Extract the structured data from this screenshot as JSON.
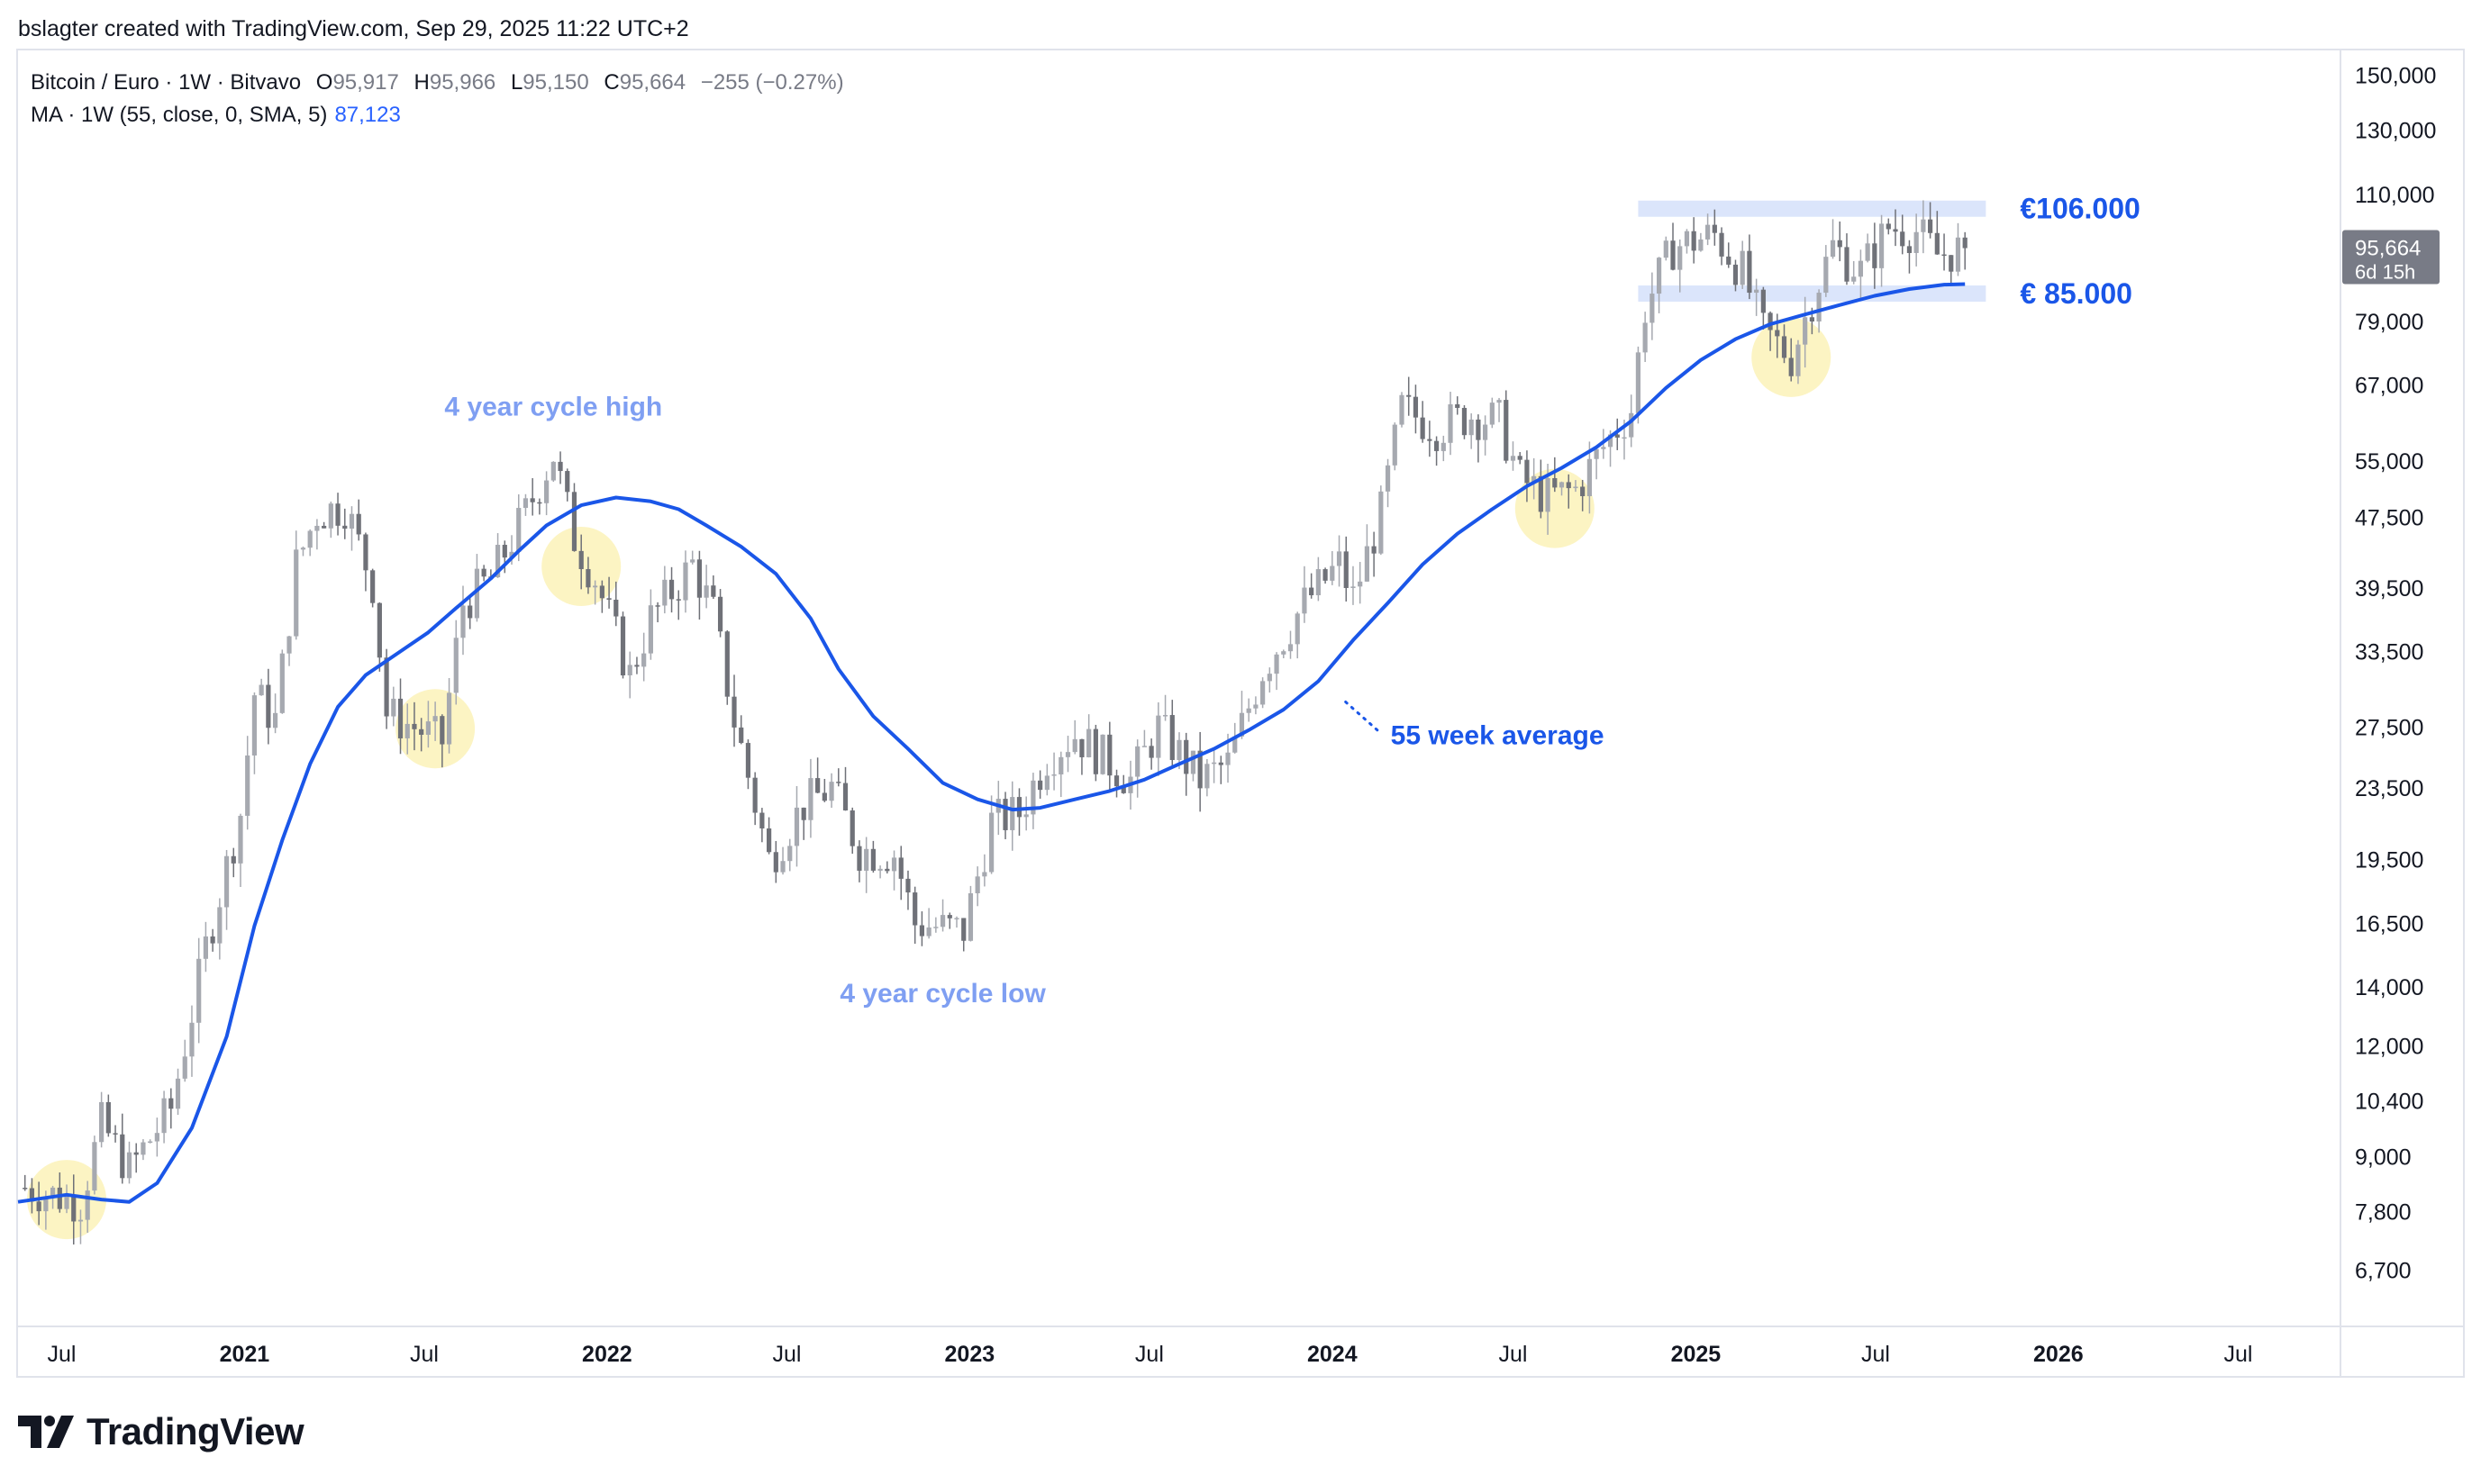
{
  "header": {
    "attribution": "bslagter created with TradingView.com, Sep 29, 2025 11:22 UTC+2"
  },
  "legend": {
    "symbol": "Bitcoin / Euro · 1W · Bitvavo",
    "open_label": "O",
    "open": "95,917",
    "high_label": "H",
    "high": "95,966",
    "low_label": "L",
    "low": "95,150",
    "close_label": "C",
    "close": "95,664",
    "change": "−255 (−0.27%)",
    "ma_label": "MA · 1W (55, close, 0, SMA, 5)",
    "ma_value": "87,123"
  },
  "price_tag": {
    "price": "95,664",
    "countdown": "6d 15h"
  },
  "brand": {
    "name": "TradingView"
  },
  "colors": {
    "ma_line": "#1a56e8",
    "candles": "#a6a9b0",
    "candles_dark": "#6f7178",
    "highlight": "#fbf2b8",
    "band": "#dbe5fb",
    "annotation_light": "#7f9ff2",
    "annotation_dark": "#1a56e8",
    "price_tag_bg": "#787b86"
  },
  "chart_data": {
    "type": "candlestick",
    "title": "Bitcoin / Euro · 1W · Bitvavo",
    "scale": "log",
    "ylim": [
      5800,
      160000
    ],
    "x_range": [
      "2020-05-18",
      "2026-10-12"
    ],
    "y_ticks": [
      "150,000",
      "130,000",
      "110,000",
      "95,664",
      "79,000",
      "67,000",
      "55,000",
      "47,500",
      "39,500",
      "33,500",
      "27,500",
      "23,500",
      "19,500",
      "16,500",
      "14,000",
      "12,000",
      "10,400",
      "9,000",
      "7,800",
      "6,700"
    ],
    "x_ticks": [
      {
        "label": "Jul",
        "date": "2020-07-01",
        "bold": false
      },
      {
        "label": "2021",
        "date": "2021-01-01",
        "bold": true
      },
      {
        "label": "Jul",
        "date": "2021-07-01",
        "bold": false
      },
      {
        "label": "2022",
        "date": "2022-01-01",
        "bold": true
      },
      {
        "label": "Jul",
        "date": "2022-07-01",
        "bold": false
      },
      {
        "label": "2023",
        "date": "2023-01-01",
        "bold": true
      },
      {
        "label": "Jul",
        "date": "2023-07-01",
        "bold": false
      },
      {
        "label": "2024",
        "date": "2024-01-01",
        "bold": true
      },
      {
        "label": "Jul",
        "date": "2024-07-01",
        "bold": false
      },
      {
        "label": "2025",
        "date": "2025-01-01",
        "bold": true
      },
      {
        "label": "Jul",
        "date": "2025-07-01",
        "bold": false
      },
      {
        "label": "2026",
        "date": "2026-01-01",
        "bold": true
      },
      {
        "label": "Jul",
        "date": "2026-07-01",
        "bold": false
      }
    ],
    "price_path": [
      [
        "2020-05-25",
        8300
      ],
      [
        "2020-07-20",
        8000
      ],
      [
        "2020-08-10",
        9800
      ],
      [
        "2020-09-07",
        8700
      ],
      [
        "2020-10-19",
        10200
      ],
      [
        "2020-11-23",
        15500
      ],
      [
        "2020-12-28",
        22000
      ],
      [
        "2021-01-11",
        30000
      ],
      [
        "2021-02-01",
        28000
      ],
      [
        "2021-02-22",
        42000
      ],
      [
        "2021-03-15",
        48000
      ],
      [
        "2021-04-12",
        49000
      ],
      [
        "2021-05-10",
        40000
      ],
      [
        "2021-05-24",
        28500
      ],
      [
        "2021-06-21",
        27500
      ],
      [
        "2021-07-19",
        26500
      ],
      [
        "2021-08-09",
        38000
      ],
      [
        "2021-09-06",
        40500
      ],
      [
        "2021-10-11",
        48000
      ],
      [
        "2021-11-08",
        56000
      ],
      [
        "2021-11-29",
        45000
      ],
      [
        "2021-12-20",
        40500
      ],
      [
        "2022-01-24",
        31500
      ],
      [
        "2022-02-14",
        36500
      ],
      [
        "2022-03-28",
        42000
      ],
      [
        "2022-04-18",
        37000
      ],
      [
        "2022-05-09",
        28000
      ],
      [
        "2022-06-13",
        19500
      ],
      [
        "2022-07-18",
        22500
      ],
      [
        "2022-08-15",
        23500
      ],
      [
        "2022-09-12",
        20000
      ],
      [
        "2022-10-17",
        19800
      ],
      [
        "2022-11-07",
        16500
      ],
      [
        "2022-12-26",
        16200
      ],
      [
        "2023-01-23",
        21500
      ],
      [
        "2023-02-20",
        22000
      ],
      [
        "2023-03-20",
        25500
      ],
      [
        "2023-04-17",
        27000
      ],
      [
        "2023-06-12",
        24000
      ],
      [
        "2023-07-10",
        27500
      ],
      [
        "2023-08-21",
        24000
      ],
      [
        "2023-09-18",
        25000
      ],
      [
        "2023-10-23",
        32000
      ],
      [
        "2023-12-04",
        38000
      ],
      [
        "2024-01-08",
        42000
      ],
      [
        "2024-01-22",
        38500
      ],
      [
        "2024-02-19",
        48000
      ],
      [
        "2024-03-11",
        63000
      ],
      [
        "2024-04-15",
        60000
      ],
      [
        "2024-05-20",
        62000
      ],
      [
        "2024-06-17",
        61000
      ],
      [
        "2024-07-08",
        52500
      ],
      [
        "2024-08-05",
        50000
      ],
      [
        "2024-09-02",
        51000
      ],
      [
        "2024-09-30",
        57000
      ],
      [
        "2024-10-28",
        63000
      ],
      [
        "2024-11-11",
        82000
      ],
      [
        "2024-12-09",
        96000
      ],
      [
        "2025-01-20",
        99000
      ],
      [
        "2025-02-17",
        90000
      ],
      [
        "2025-03-10",
        77000
      ],
      [
        "2025-04-07",
        72000
      ],
      [
        "2025-04-28",
        84000
      ],
      [
        "2025-05-19",
        96000
      ],
      [
        "2025-06-16",
        90000
      ],
      [
        "2025-07-14",
        101000
      ],
      [
        "2025-08-11",
        100000
      ],
      [
        "2025-09-01",
        94000
      ],
      [
        "2025-09-29",
        95664
      ]
    ],
    "series": [
      {
        "name": "MA · 1W (55, close, 0, SMA, 5)",
        "points": [
          [
            "2020-05-18",
            8000
          ],
          [
            "2020-07-06",
            8150
          ],
          [
            "2020-08-10",
            8050
          ],
          [
            "2020-09-07",
            8000
          ],
          [
            "2020-10-05",
            8400
          ],
          [
            "2020-11-09",
            9700
          ],
          [
            "2020-12-14",
            12300
          ],
          [
            "2021-01-11",
            16400
          ],
          [
            "2021-02-08",
            20500
          ],
          [
            "2021-03-08",
            25000
          ],
          [
            "2021-04-05",
            29000
          ],
          [
            "2021-05-03",
            31500
          ],
          [
            "2021-06-07",
            33500
          ],
          [
            "2021-07-05",
            35200
          ],
          [
            "2021-08-02",
            37500
          ],
          [
            "2021-09-06",
            40500
          ],
          [
            "2021-10-04",
            43500
          ],
          [
            "2021-11-01",
            46500
          ],
          [
            "2021-12-06",
            49000
          ],
          [
            "2022-01-10",
            50000
          ],
          [
            "2022-02-14",
            49500
          ],
          [
            "2022-03-14",
            48500
          ],
          [
            "2022-04-11",
            46500
          ],
          [
            "2022-05-16",
            44000
          ],
          [
            "2022-06-20",
            41000
          ],
          [
            "2022-07-25",
            36500
          ],
          [
            "2022-08-22",
            32000
          ],
          [
            "2022-09-26",
            28300
          ],
          [
            "2022-10-31",
            26000
          ],
          [
            "2022-12-05",
            23800
          ],
          [
            "2023-01-09",
            22800
          ],
          [
            "2023-02-13",
            22200
          ],
          [
            "2023-03-13",
            22300
          ],
          [
            "2023-04-17",
            22800
          ],
          [
            "2023-05-22",
            23300
          ],
          [
            "2023-06-26",
            24000
          ],
          [
            "2023-07-31",
            25000
          ],
          [
            "2023-09-04",
            26000
          ],
          [
            "2023-10-09",
            27300
          ],
          [
            "2023-11-13",
            28800
          ],
          [
            "2023-12-18",
            31000
          ],
          [
            "2024-01-22",
            34500
          ],
          [
            "2024-02-26",
            38000
          ],
          [
            "2024-04-01",
            42000
          ],
          [
            "2024-05-06",
            45500
          ],
          [
            "2024-06-10",
            48500
          ],
          [
            "2024-07-15",
            51500
          ],
          [
            "2024-08-19",
            54000
          ],
          [
            "2024-09-23",
            57000
          ],
          [
            "2024-10-28",
            61000
          ],
          [
            "2024-12-02",
            66500
          ],
          [
            "2025-01-06",
            71500
          ],
          [
            "2025-02-10",
            75500
          ],
          [
            "2025-03-17",
            78500
          ],
          [
            "2025-04-21",
            80500
          ],
          [
            "2025-05-26",
            82500
          ],
          [
            "2025-06-30",
            84500
          ],
          [
            "2025-08-04",
            86000
          ],
          [
            "2025-09-08",
            87000
          ],
          [
            "2025-09-29",
            87123
          ]
        ]
      }
    ],
    "bands": [
      {
        "label": "€106.000",
        "value": 106000,
        "from": "2024-11-04",
        "to": "2025-10-20"
      },
      {
        "label": "€ 85.000",
        "value": 85000,
        "from": "2024-11-04",
        "to": "2025-10-20"
      }
    ],
    "annotations": [
      {
        "text": "4 year cycle high",
        "date": "2021-11-08",
        "value": 63500,
        "style": "light"
      },
      {
        "text": "4 year cycle low",
        "date": "2022-12-05",
        "value": 13800,
        "style": "light"
      },
      {
        "text": "55 week average",
        "date": "2024-01-29",
        "value": 27000,
        "style": "dark"
      }
    ],
    "highlights": [
      {
        "date": "2020-07-06",
        "value": 8050
      },
      {
        "date": "2021-07-12",
        "value": 27400
      },
      {
        "date": "2021-12-06",
        "value": 41800
      },
      {
        "date": "2024-08-12",
        "value": 48600
      },
      {
        "date": "2025-04-07",
        "value": 72000
      }
    ],
    "grid": false,
    "legend_position": "top-left"
  }
}
